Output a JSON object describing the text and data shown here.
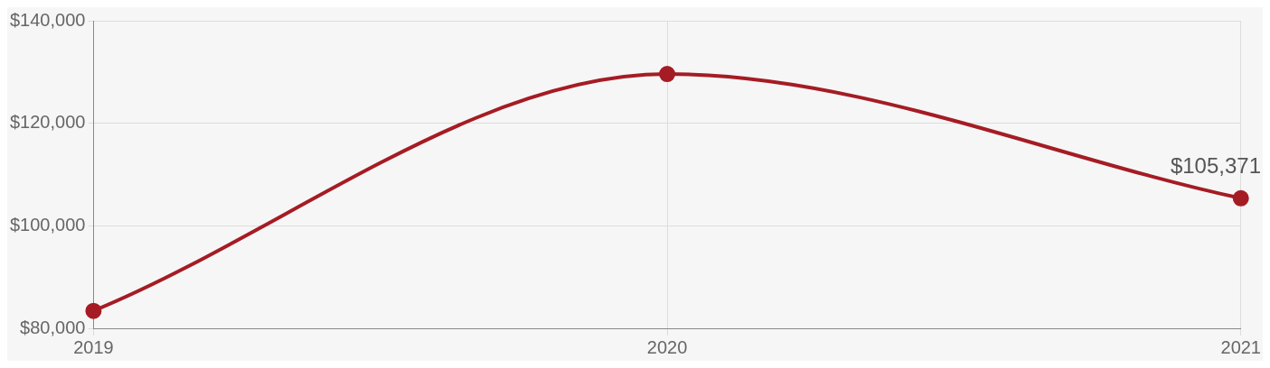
{
  "chart_data": {
    "type": "line",
    "categories": [
      "2019",
      "2020",
      "2021"
    ],
    "series": [
      {
        "color": "#a51c24",
        "values": [
          83400,
          129600,
          105371
        ],
        "value_labels": [
          null,
          null,
          "$105,371"
        ]
      }
    ],
    "ylim": [
      80000,
      140000
    ],
    "yticks": [
      {
        "value": 80000,
        "label": "$80,000"
      },
      {
        "value": 100000,
        "label": "$100,000"
      },
      {
        "value": 120000,
        "label": "$120,000"
      },
      {
        "value": 140000,
        "label": "$140,000"
      }
    ],
    "grid": true,
    "legend": false,
    "marker": "circle",
    "line_style": "solid"
  }
}
